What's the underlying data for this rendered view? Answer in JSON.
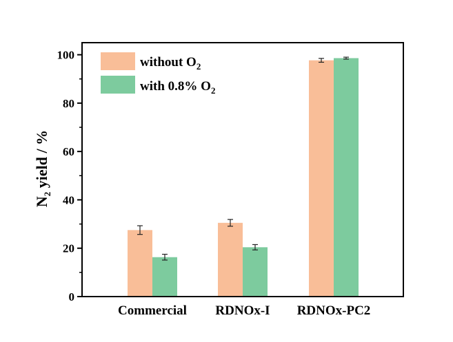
{
  "chart_data": {
    "type": "bar",
    "title": "",
    "xlabel": "",
    "ylabel": {
      "main": "N",
      "sub": "2",
      "rest": " yield / %"
    },
    "ylim": [
      0,
      105
    ],
    "yticks": [
      0,
      20,
      40,
      60,
      80,
      100
    ],
    "categories": [
      "Commercial",
      "RDNOx-I",
      "RDNOx-PC2"
    ],
    "series": [
      {
        "name": "without O2",
        "label_main": "without O",
        "label_sub": "2",
        "color": "#F9BE98",
        "values": [
          27.5,
          30.5,
          97.7
        ],
        "errors": [
          1.8,
          1.4,
          0.8
        ]
      },
      {
        "name": "with 0.8% O2",
        "label_main": "with 0.8% O",
        "label_sub": "2",
        "color": "#7DCB9E",
        "values": [
          16.3,
          20.4,
          98.6
        ],
        "errors": [
          1.2,
          1.1,
          0.4
        ]
      }
    ],
    "legend_position": "top-left"
  }
}
